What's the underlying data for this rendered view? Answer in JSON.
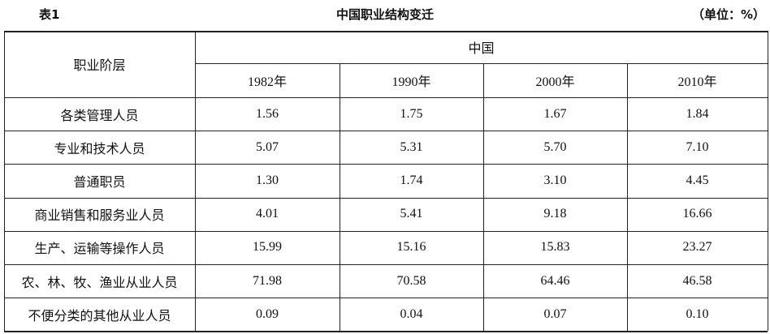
{
  "header": {
    "label": "表1",
    "title": "中国职业结构变迁",
    "unit": "（单位：%）"
  },
  "table": {
    "row_header": "职业阶层",
    "group": "中国",
    "years": [
      "1982年",
      "1990年",
      "2000年",
      "2010年"
    ],
    "rows": [
      [
        "各类管理人员",
        "1.56",
        "1.75",
        "1.67",
        "1.84"
      ],
      [
        "专业和技术人员",
        "5.07",
        "5.31",
        "5.70",
        "7.10"
      ],
      [
        "普通职员",
        "1.30",
        "1.74",
        "3.10",
        "4.45"
      ],
      [
        "商业销售和服务业人员",
        "4.01",
        "5.41",
        "9.18",
        "16.66"
      ],
      [
        "生产、运输等操作人员",
        "15.99",
        "15.16",
        "15.83",
        "23.27"
      ],
      [
        "农、林、牧、渔业从业人员",
        "71.98",
        "70.58",
        "64.46",
        "46.58"
      ],
      [
        "不便分类的其他从业人员",
        "0.09",
        "0.04",
        "0.07",
        "0.10"
      ]
    ]
  }
}
